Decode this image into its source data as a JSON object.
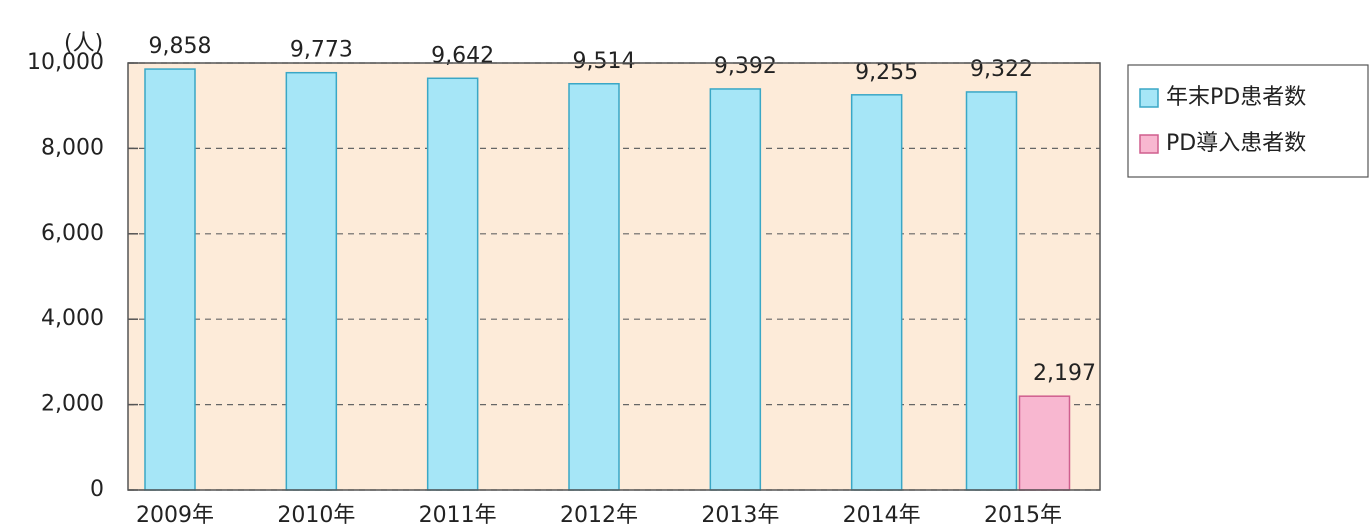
{
  "chart_data": {
    "type": "bar",
    "y_unit_label": "(人)",
    "categories": [
      "2009年",
      "2010年",
      "2011年",
      "2012年",
      "2013年",
      "2014年",
      "2015年"
    ],
    "series": [
      {
        "name": "年末PD患者数",
        "color": "#a6e6f7",
        "values": [
          9858,
          9773,
          9642,
          9514,
          9392,
          9255,
          9322
        ],
        "value_labels": [
          "9,858",
          "9,773",
          "9,642",
          "9,514",
          "9,392",
          "9,255",
          "9,322"
        ]
      },
      {
        "name": "PD導入患者数",
        "color": "#f8b7d0",
        "values": [
          null,
          null,
          null,
          null,
          null,
          null,
          2197
        ],
        "value_labels": [
          null,
          null,
          null,
          null,
          null,
          null,
          "2,197"
        ]
      }
    ],
    "ylim": [
      0,
      10000
    ],
    "yticks": [
      0,
      {
        "value": 2000,
        "label": "2,000"
      },
      {
        "value": 4000,
        "label": "4,000"
      },
      {
        "value": 6000,
        "label": "6,000"
      },
      {
        "value": 8000,
        "label": "8,000"
      },
      {
        "value": 10000,
        "label": "10,000"
      }
    ],
    "grid": true,
    "legend": "right"
  }
}
